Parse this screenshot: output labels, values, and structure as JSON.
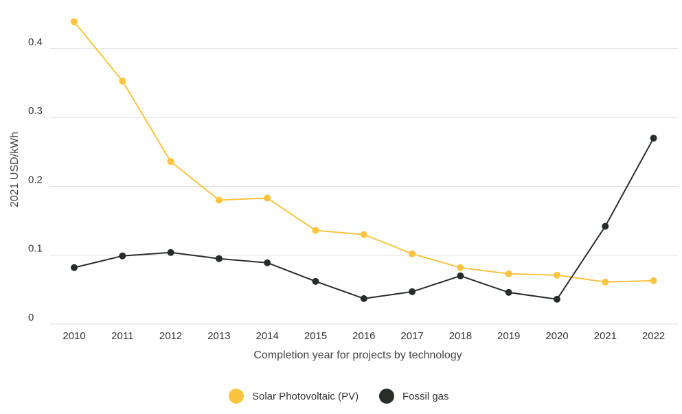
{
  "chart_data": {
    "type": "line",
    "title": "",
    "xlabel": "Completion year for projects by technology",
    "ylabel": "2021 USD/kWh",
    "x": [
      "2010",
      "2011",
      "2012",
      "2013",
      "2014",
      "2015",
      "2016",
      "2017",
      "2018",
      "2019",
      "2020",
      "2021",
      "2022"
    ],
    "yticks": [
      0,
      0.1,
      0.2,
      0.3,
      0.4
    ],
    "ytick_labels": [
      "0",
      "0.1",
      "0.2",
      "0.3",
      "0.4"
    ],
    "ylim": [
      0,
      0.45
    ],
    "grid": "horizontal",
    "legend_position": "bottom-center",
    "series": [
      {
        "name": "Solar Photovoltaic (PV)",
        "color": "#F9C440",
        "values": [
          0.439,
          0.353,
          0.236,
          0.18,
          0.183,
          0.136,
          0.13,
          0.102,
          0.082,
          0.073,
          0.071,
          0.061,
          0.063
        ]
      },
      {
        "name": "Fossil gas",
        "color": "#282D2A",
        "values": [
          0.082,
          0.099,
          0.104,
          0.095,
          0.089,
          0.062,
          0.037,
          0.047,
          0.07,
          0.046,
          0.036,
          0.142,
          0.27
        ]
      }
    ]
  }
}
